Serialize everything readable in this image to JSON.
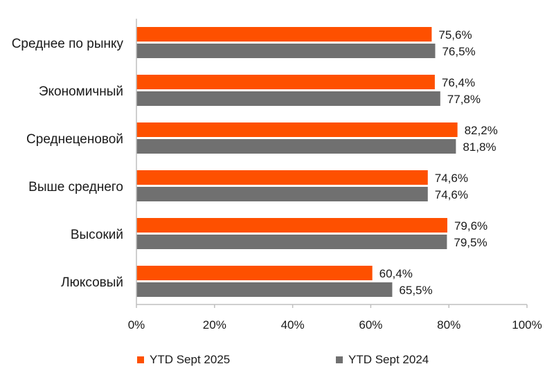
{
  "chart_data": {
    "type": "bar",
    "orientation": "horizontal",
    "categories": [
      "Среднее по рынку",
      "Экономичный",
      "Среднеценовой",
      "Выше среднего",
      "Высокий",
      "Люксовый"
    ],
    "series": [
      {
        "name": "YTD Sept 2025",
        "color": "#fe5000",
        "values": [
          75.6,
          76.4,
          82.2,
          74.6,
          79.6,
          60.4
        ],
        "labels": [
          "75,6%",
          "76,4%",
          "82,2%",
          "74,6%",
          "79,6%",
          "60,4%"
        ]
      },
      {
        "name": "YTD Sept 2024",
        "color": "#707070",
        "values": [
          76.5,
          77.8,
          81.8,
          74.6,
          79.5,
          65.5
        ],
        "labels": [
          "76,5%",
          "77,8%",
          "81,8%",
          "74,6%",
          "79,5%",
          "65,5%"
        ]
      }
    ],
    "xlim": [
      0,
      100
    ],
    "xticks": [
      0,
      20,
      40,
      60,
      80,
      100
    ],
    "xtick_labels": [
      "0%",
      "20%",
      "40%",
      "60%",
      "80%",
      "100%"
    ],
    "grid": false,
    "legend_position": "bottom"
  }
}
